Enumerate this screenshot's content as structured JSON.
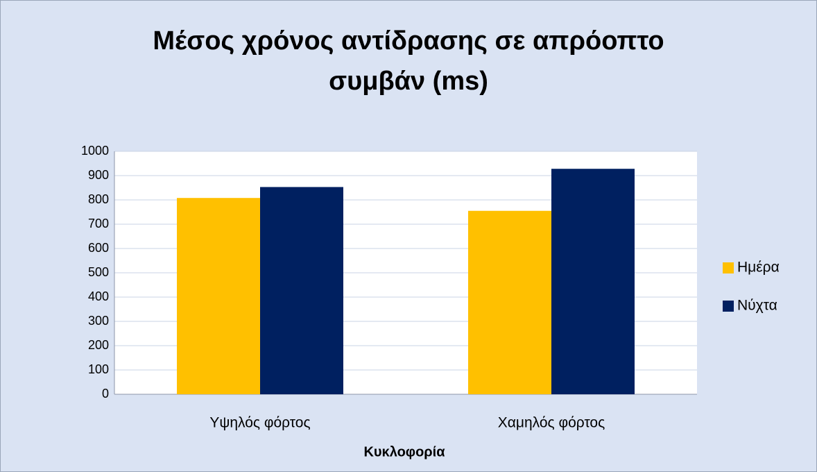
{
  "chart_data": {
    "type": "bar",
    "title": "Μέσος χρόνος αντίδρασης σε απρόοπτο συμβάν (ms)",
    "x_label": "Κυκλοφορία",
    "categories": [
      "Υψηλός φόρτος",
      "Χαμηλός φόρτος"
    ],
    "series": [
      {
        "name": "Ημέρα",
        "color": "#ffc000",
        "values": [
          808,
          755
        ]
      },
      {
        "name": "Νύχτα",
        "color": "#002060",
        "values": [
          853,
          928
        ]
      }
    ],
    "ylim": [
      0,
      1000
    ],
    "yticks": [
      0,
      100,
      200,
      300,
      400,
      500,
      600,
      700,
      800,
      900,
      1000
    ],
    "grid": true,
    "legend": "right"
  }
}
